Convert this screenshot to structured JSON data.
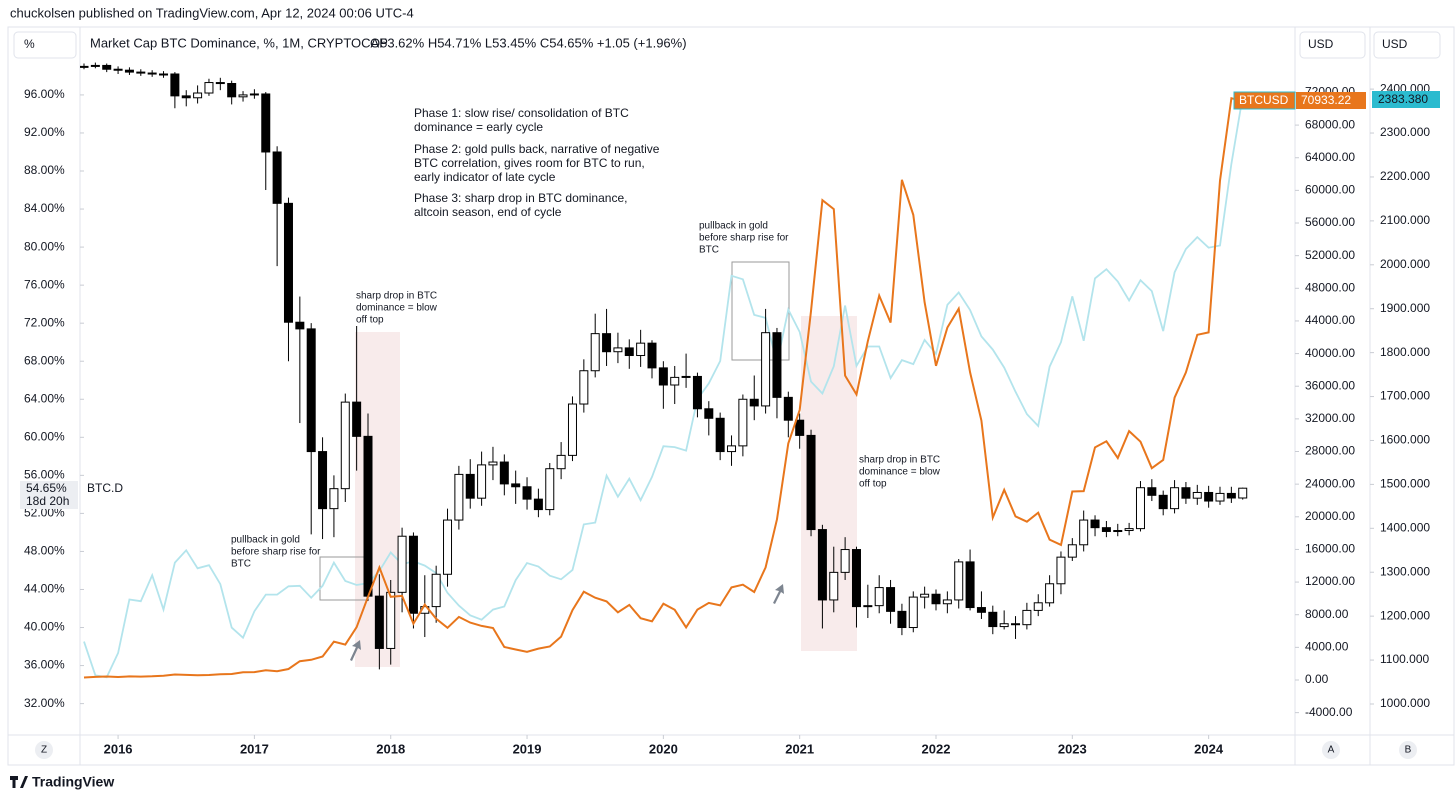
{
  "published": "chuckolsen published on TradingView.com, Apr 12, 2024 00:06 UTC-4",
  "footer": "TradingView",
  "chart_data": {
    "type": "candlestick",
    "title": "Market Cap BTC Dominance, %, 1M, CRYPTOCAP",
    "ohlc_summary": "O53.62%  H54.71%  L53.45%  C54.65%  +1.05 (+1.96%)",
    "symbol_label": "BTC.D",
    "last_label": "54.65%",
    "countdown": "18d 20h",
    "y_unit": "%",
    "y2_unit": "USD",
    "y3_unit": "USD",
    "corner_buttons": [
      "Z",
      "A",
      "B"
    ],
    "candle_colors": {
      "up": "#ffffff",
      "down": "#000000",
      "wick": "#000000"
    },
    "x": [
      "2015-10",
      "2015-11",
      "2015-12",
      "2016-01",
      "2016-02",
      "2016-03",
      "2016-04",
      "2016-05",
      "2016-06",
      "2016-07",
      "2016-08",
      "2016-09",
      "2016-10",
      "2016-11",
      "2016-12",
      "2017-01",
      "2017-02",
      "2017-03",
      "2017-04",
      "2017-05",
      "2017-06",
      "2017-07",
      "2017-08",
      "2017-09",
      "2017-10",
      "2017-11",
      "2017-12",
      "2018-01",
      "2018-02",
      "2018-03",
      "2018-04",
      "2018-05",
      "2018-06",
      "2018-07",
      "2018-08",
      "2018-09",
      "2018-10",
      "2018-11",
      "2018-12",
      "2019-01",
      "2019-02",
      "2019-03",
      "2019-04",
      "2019-05",
      "2019-06",
      "2019-07",
      "2019-08",
      "2019-09",
      "2019-10",
      "2019-11",
      "2019-12",
      "2020-01",
      "2020-02",
      "2020-03",
      "2020-04",
      "2020-05",
      "2020-06",
      "2020-07",
      "2020-08",
      "2020-09",
      "2020-10",
      "2020-11",
      "2020-12",
      "2021-01",
      "2021-02",
      "2021-03",
      "2021-04",
      "2021-05",
      "2021-06",
      "2021-07",
      "2021-08",
      "2021-09",
      "2021-10",
      "2021-11",
      "2021-12",
      "2022-01",
      "2022-02",
      "2022-03",
      "2022-04",
      "2022-05",
      "2022-06",
      "2022-07",
      "2022-08",
      "2022-09",
      "2022-10",
      "2022-11",
      "2022-12",
      "2023-01",
      "2023-02",
      "2023-03",
      "2023-04",
      "2023-05",
      "2023-06",
      "2023-07",
      "2023-08",
      "2023-09",
      "2023-10",
      "2023-11",
      "2023-12",
      "2024-01",
      "2024-02",
      "2024-03",
      "2024-04"
    ],
    "xticks": [
      {
        "value": "2016-01",
        "label": "2016"
      },
      {
        "value": "2017-01",
        "label": "2017"
      },
      {
        "value": "2018-01",
        "label": "2018"
      },
      {
        "value": "2019-01",
        "label": "2019"
      },
      {
        "value": "2020-01",
        "label": "2020"
      },
      {
        "value": "2021-01",
        "label": "2021"
      },
      {
        "value": "2022-01",
        "label": "2022"
      },
      {
        "value": "2023-01",
        "label": "2023"
      },
      {
        "value": "2024-01",
        "label": "2024"
      }
    ],
    "open": [
      98.9,
      99.0,
      99.1,
      98.7,
      98.6,
      98.4,
      98.3,
      98.2,
      98.2,
      95.9,
      95.7,
      96.2,
      97.3,
      97.2,
      95.8,
      96.0,
      96.1,
      90.0,
      84.6,
      72.1,
      71.4,
      58.5,
      52.5,
      54.6,
      63.7,
      60.1,
      43.3,
      37.8,
      43.7,
      49.6,
      41.5,
      42.2,
      45.6,
      51.3,
      56.1,
      53.6,
      57.1,
      57.4,
      55.1,
      54.8,
      53.5,
      52.4,
      56.7,
      58.1,
      63.5,
      67.0,
      70.9,
      69.0,
      69.4,
      68.6,
      69.9,
      67.3,
      65.5,
      66.3,
      66.4,
      63.0,
      62.0,
      58.5,
      59.1,
      64.0,
      63.3,
      71.0,
      64.2,
      61.8,
      60.2,
      50.3,
      42.9,
      45.8,
      48.2,
      42.2,
      42.3,
      44.2,
      41.7,
      40.0,
      43.2,
      43.5,
      42.5,
      42.9,
      46.9,
      42.1,
      41.6,
      40.1,
      40.4,
      40.3,
      41.8,
      42.6,
      44.6,
      47.4,
      48.7,
      51.3,
      50.5,
      50.1,
      50.2,
      50.4,
      54.7,
      53.9,
      52.5,
      54.7,
      53.6,
      54.2,
      53.3,
      54.1,
      53.62
    ],
    "high": [
      99.3,
      99.4,
      99.3,
      99.0,
      98.9,
      98.7,
      98.6,
      98.5,
      98.4,
      96.5,
      97.0,
      97.7,
      97.8,
      97.5,
      96.4,
      96.6,
      96.3,
      90.6,
      85.2,
      74.8,
      72.0,
      60.0,
      56.0,
      64.6,
      71.7,
      62.5,
      45.6,
      45.0,
      50.5,
      50.0,
      45.5,
      46.5,
      52.5,
      57.0,
      57.7,
      58.5,
      59.0,
      58.2,
      56.5,
      55.8,
      54.6,
      57.3,
      59.5,
      64.3,
      68.2,
      73.0,
      73.5,
      71.0,
      70.3,
      71.3,
      70.2,
      68.0,
      67.5,
      68.8,
      66.8,
      63.8,
      62.6,
      60.2,
      64.5,
      66.5,
      73.5,
      71.5,
      64.8,
      62.5,
      60.8,
      50.8,
      48.5,
      49.5,
      48.5,
      44.5,
      45.5,
      45.0,
      42.5,
      43.8,
      44.3,
      44.0,
      43.8,
      47.2,
      48.2,
      43.8,
      42.3,
      41.8,
      41.2,
      42.6,
      43.5,
      45.5,
      48.0,
      49.4,
      52.3,
      51.8,
      51.2,
      50.9,
      51.0,
      55.4,
      55.6,
      54.4,
      55.5,
      55.3,
      55.0,
      54.9,
      54.8,
      54.8,
      54.71
    ],
    "low": [
      98.7,
      98.8,
      98.4,
      98.2,
      98.1,
      98.0,
      97.9,
      97.8,
      94.6,
      94.8,
      95.1,
      95.9,
      96.5,
      95.0,
      95.3,
      95.6,
      86.0,
      78.0,
      68.0,
      61.5,
      49.8,
      49.3,
      49.5,
      53.2,
      56.5,
      42.8,
      35.6,
      36.1,
      41.6,
      39.9,
      39.0,
      40.5,
      44.3,
      50.3,
      52.5,
      52.8,
      55.5,
      53.9,
      53.0,
      52.4,
      51.6,
      51.8,
      55.6,
      57.5,
      62.6,
      66.3,
      67.5,
      67.8,
      67.2,
      67.4,
      66.2,
      63.0,
      63.5,
      65.2,
      62.1,
      60.2,
      57.6,
      57.0,
      58.0,
      61.8,
      62.5,
      62.0,
      60.0,
      58.8,
      49.6,
      39.9,
      41.6,
      45.0,
      40.0,
      41.0,
      41.5,
      40.4,
      39.2,
      39.5,
      42.0,
      41.8,
      41.5,
      42.0,
      41.8,
      40.9,
      39.3,
      39.8,
      38.8,
      39.8,
      41.2,
      42.2,
      43.5,
      47.0,
      48.0,
      49.6,
      49.5,
      49.6,
      49.7,
      50.1,
      53.3,
      51.8,
      52.0,
      53.0,
      52.9,
      52.6,
      52.9,
      53.1,
      53.45
    ],
    "close": [
      99.0,
      99.1,
      98.7,
      98.6,
      98.4,
      98.3,
      98.2,
      98.2,
      95.9,
      95.7,
      96.2,
      97.3,
      97.2,
      95.8,
      96.0,
      96.1,
      90.0,
      84.6,
      72.1,
      71.4,
      58.5,
      52.5,
      54.6,
      63.7,
      60.1,
      43.3,
      37.8,
      43.7,
      49.6,
      41.5,
      42.2,
      45.6,
      51.3,
      56.1,
      53.6,
      57.1,
      57.4,
      55.1,
      54.8,
      53.5,
      52.4,
      56.7,
      58.1,
      63.5,
      67.0,
      70.9,
      69.0,
      69.4,
      68.6,
      69.9,
      67.3,
      65.5,
      66.3,
      66.4,
      63.0,
      62.0,
      58.5,
      59.1,
      64.0,
      63.3,
      71.0,
      64.2,
      61.8,
      60.2,
      50.3,
      42.9,
      45.8,
      48.2,
      42.2,
      42.3,
      44.2,
      41.7,
      40.0,
      43.2,
      43.5,
      42.5,
      42.9,
      46.9,
      42.1,
      41.6,
      40.1,
      40.4,
      40.3,
      41.8,
      42.6,
      44.6,
      47.4,
      48.7,
      51.3,
      50.5,
      50.1,
      50.2,
      50.4,
      54.7,
      53.9,
      52.5,
      54.7,
      53.6,
      54.2,
      53.3,
      54.1,
      53.62,
      54.65
    ],
    "ylim": [
      28.7,
      102.3
    ],
    "yticks": [
      {
        "value": 32,
        "label": "32.00%"
      },
      {
        "value": 36,
        "label": "36.00%"
      },
      {
        "value": 40,
        "label": "40.00%"
      },
      {
        "value": 44,
        "label": "44.00%"
      },
      {
        "value": 48,
        "label": "48.00%"
      },
      {
        "value": 52,
        "label": "52.00%"
      },
      {
        "value": 56,
        "label": "56.00%"
      },
      {
        "value": 60,
        "label": "60.00%"
      },
      {
        "value": 64,
        "label": "64.00%"
      },
      {
        "value": 68,
        "label": "68.00%"
      },
      {
        "value": 72,
        "label": "72.00%"
      },
      {
        "value": 76,
        "label": "76.00%"
      },
      {
        "value": 80,
        "label": "80.00%"
      },
      {
        "value": 84,
        "label": "84.00%"
      },
      {
        "value": 88,
        "label": "88.00%"
      },
      {
        "value": 92,
        "label": "92.00%"
      },
      {
        "value": 96,
        "label": "96.00%"
      }
    ],
    "y2lim": [
      -6740,
      79040
    ],
    "y2ticks": [
      {
        "value": -4000,
        "label": "-4000.00"
      },
      {
        "value": 0,
        "label": "0.00"
      },
      {
        "value": 4000,
        "label": "4000.00"
      },
      {
        "value": 8000,
        "label": "8000.00"
      },
      {
        "value": 12000,
        "label": "12000.00"
      },
      {
        "value": 16000,
        "label": "16000.00"
      },
      {
        "value": 20000,
        "label": "20000.00"
      },
      {
        "value": 24000,
        "label": "24000.00"
      },
      {
        "value": 28000,
        "label": "28000.00"
      },
      {
        "value": 32000,
        "label": "32000.00"
      },
      {
        "value": 36000,
        "label": "36000.00"
      },
      {
        "value": 40000,
        "label": "40000.00"
      },
      {
        "value": 44000,
        "label": "44000.00"
      },
      {
        "value": 48000,
        "label": "48000.00"
      },
      {
        "value": 52000,
        "label": "52000.00"
      },
      {
        "value": 56000,
        "label": "56000.00"
      },
      {
        "value": 60000,
        "label": "60000.00"
      },
      {
        "value": 64000,
        "label": "64000.00"
      },
      {
        "value": 68000,
        "label": "68000.00"
      },
      {
        "value": 72000,
        "label": "72000.00"
      }
    ],
    "y3lim": [
      929.4,
      2523.2
    ],
    "y3ticks": [
      {
        "value": 1000,
        "label": "1000.000"
      },
      {
        "value": 1100,
        "label": "1100.000"
      },
      {
        "value": 1200,
        "label": "1200.000"
      },
      {
        "value": 1300,
        "label": "1300.000"
      },
      {
        "value": 1400,
        "label": "1400.000"
      },
      {
        "value": 1500,
        "label": "1500.000"
      },
      {
        "value": 1600,
        "label": "1600.000"
      },
      {
        "value": 1700,
        "label": "1700.000"
      },
      {
        "value": 1800,
        "label": "1800.000"
      },
      {
        "value": 1900,
        "label": "1900.000"
      },
      {
        "value": 2000,
        "label": "2000.000"
      },
      {
        "value": 2100,
        "label": "2100.000"
      },
      {
        "value": 2200,
        "label": "2200.000"
      },
      {
        "value": 2300,
        "label": "2300.000"
      },
      {
        "value": 2400,
        "label": "2400.000"
      }
    ],
    "series": [
      {
        "name": "BTCUSD",
        "color": "#e8761c",
        "axis": "y2",
        "values": [
          310,
          380,
          430,
          370,
          440,
          415,
          450,
          530,
          670,
          620,
          575,
          610,
          700,
          740,
          960,
          970,
          1190,
          1080,
          1350,
          2300,
          2480,
          2880,
          4700,
          4340,
          6470,
          10200,
          13800,
          10200,
          10300,
          6900,
          9240,
          7500,
          6400,
          7730,
          7030,
          6630,
          6370,
          4040,
          3740,
          3460,
          3850,
          4100,
          5320,
          8570,
          10820,
          10080,
          9630,
          8290,
          9200,
          7570,
          7190,
          9350,
          8600,
          6440,
          8630,
          9450,
          9140,
          11350,
          11680,
          10780,
          13800,
          19700,
          28990,
          33100,
          45200,
          58800,
          57700,
          37300,
          35000,
          41500,
          47100,
          43800,
          61300,
          57000,
          46300,
          38500,
          43200,
          45500,
          37700,
          31800,
          19900,
          23300,
          20050,
          19400,
          20500,
          17200,
          16550,
          23100,
          23150,
          28500,
          29250,
          27200,
          30500,
          29200,
          25950,
          26970,
          34600,
          37700,
          42300,
          42600,
          61200,
          71300,
          70933.22
        ]
      },
      {
        "color": "#b3e4ec",
        "axis": "y3",
        "last_label": "2383.380",
        "values": [
          1142,
          1065,
          1061,
          1116,
          1238,
          1234,
          1293,
          1215,
          1322,
          1350,
          1309,
          1316,
          1273,
          1174,
          1151,
          1211,
          1249,
          1249,
          1268,
          1269,
          1242,
          1269,
          1322,
          1280,
          1271,
          1275,
          1303,
          1345,
          1318,
          1325,
          1315,
          1298,
          1253,
          1224,
          1202,
          1192,
          1215,
          1222,
          1282,
          1321,
          1313,
          1292,
          1284,
          1305,
          1409,
          1413,
          1520,
          1472,
          1513,
          1464,
          1517,
          1587,
          1585,
          1577,
          1694,
          1730,
          1781,
          1975,
          1967,
          1886,
          1879,
          1776,
          1898,
          1847,
          1734,
          1707,
          1769,
          1907,
          1770,
          1814,
          1814,
          1742,
          1783,
          1774,
          1829,
          1797,
          1909,
          1937,
          1897,
          1837,
          1807,
          1766,
          1711,
          1660,
          1633,
          1768,
          1824,
          1928,
          1827,
          1969,
          1990,
          1962,
          1919,
          1965,
          1940,
          1849,
          1983,
          2036,
          2063,
          2039,
          2044,
          2230,
          2383.38
        ]
      }
    ],
    "annotations": [
      {
        "lines": [
          "Phase 1: slow rise/ consolidation of BTC",
          "dominance = early cycle"
        ]
      },
      {
        "lines": [
          "Phase 2: gold pulls back, narrative of negative",
          "BTC correlation, gives room for BTC to run,",
          "early indicator of late cycle"
        ]
      },
      {
        "lines": [
          "Phase 3: sharp drop in BTC dominance,",
          "altcoin season, end of cycle"
        ]
      },
      {
        "lines": [
          "pullback in gold",
          "before sharp rise for",
          "BTC"
        ]
      },
      {
        "lines": [
          "sharp drop in BTC",
          "dominance  = blow",
          "off top"
        ]
      },
      {
        "lines": [
          "pullback in gold",
          "before sharp rise for",
          "BTC"
        ]
      },
      {
        "lines": [
          "sharp drop in BTC",
          "dominance  = blow",
          "off top"
        ]
      }
    ]
  }
}
